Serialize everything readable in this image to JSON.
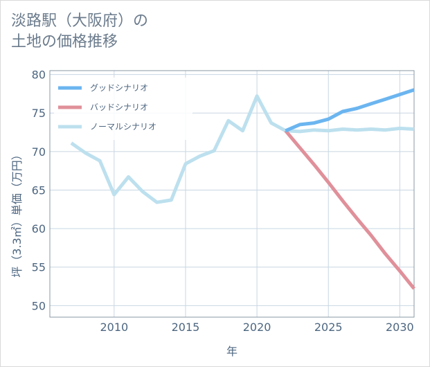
{
  "chart_data": {
    "type": "line",
    "title": "淡路駅（大阪府）の\n土地の価格推移",
    "xlabel": "年",
    "ylabel": "坪（3.3㎡）単価（万円）",
    "xlim": [
      2005.5,
      2031
    ],
    "ylim": [
      48.5,
      80.5
    ],
    "xticks": [
      2010,
      2015,
      2020,
      2025,
      2030
    ],
    "yticks": [
      50,
      55,
      60,
      65,
      70,
      75,
      80
    ],
    "grid": true,
    "legend_position": "top-left",
    "series": [
      {
        "name": "グッドシナリオ",
        "color": "#6bb5f0",
        "x": [
          2022,
          2023,
          2024,
          2025,
          2026,
          2027,
          2028,
          2029,
          2030,
          2031
        ],
        "values": [
          72.7,
          73.5,
          73.7,
          74.2,
          75.2,
          75.6,
          76.2,
          76.8,
          77.4,
          78.0
        ]
      },
      {
        "name": "バッドシナリオ",
        "color": "#e0909a",
        "x": [
          2022,
          2023,
          2024,
          2025,
          2026,
          2027,
          2028,
          2029,
          2030,
          2031
        ],
        "values": [
          72.7,
          70.5,
          68.3,
          66.0,
          63.6,
          61.3,
          59.1,
          56.7,
          54.5,
          52.2
        ]
      },
      {
        "name": "ノーマルシナリオ",
        "color": "#bde0ee",
        "x": [
          2007,
          2008,
          2009,
          2010,
          2011,
          2012,
          2013,
          2014,
          2015,
          2016,
          2017,
          2018,
          2019,
          2020,
          2021,
          2022,
          2023,
          2024,
          2025,
          2026,
          2027,
          2028,
          2029,
          2030,
          2031
        ],
        "values": [
          71.1,
          69.8,
          68.8,
          64.4,
          66.7,
          64.8,
          63.4,
          63.7,
          68.4,
          69.4,
          70.1,
          74.0,
          72.7,
          77.2,
          73.7,
          72.7,
          72.6,
          72.8,
          72.7,
          72.9,
          72.8,
          72.9,
          72.8,
          73.0,
          72.9
        ]
      }
    ]
  }
}
